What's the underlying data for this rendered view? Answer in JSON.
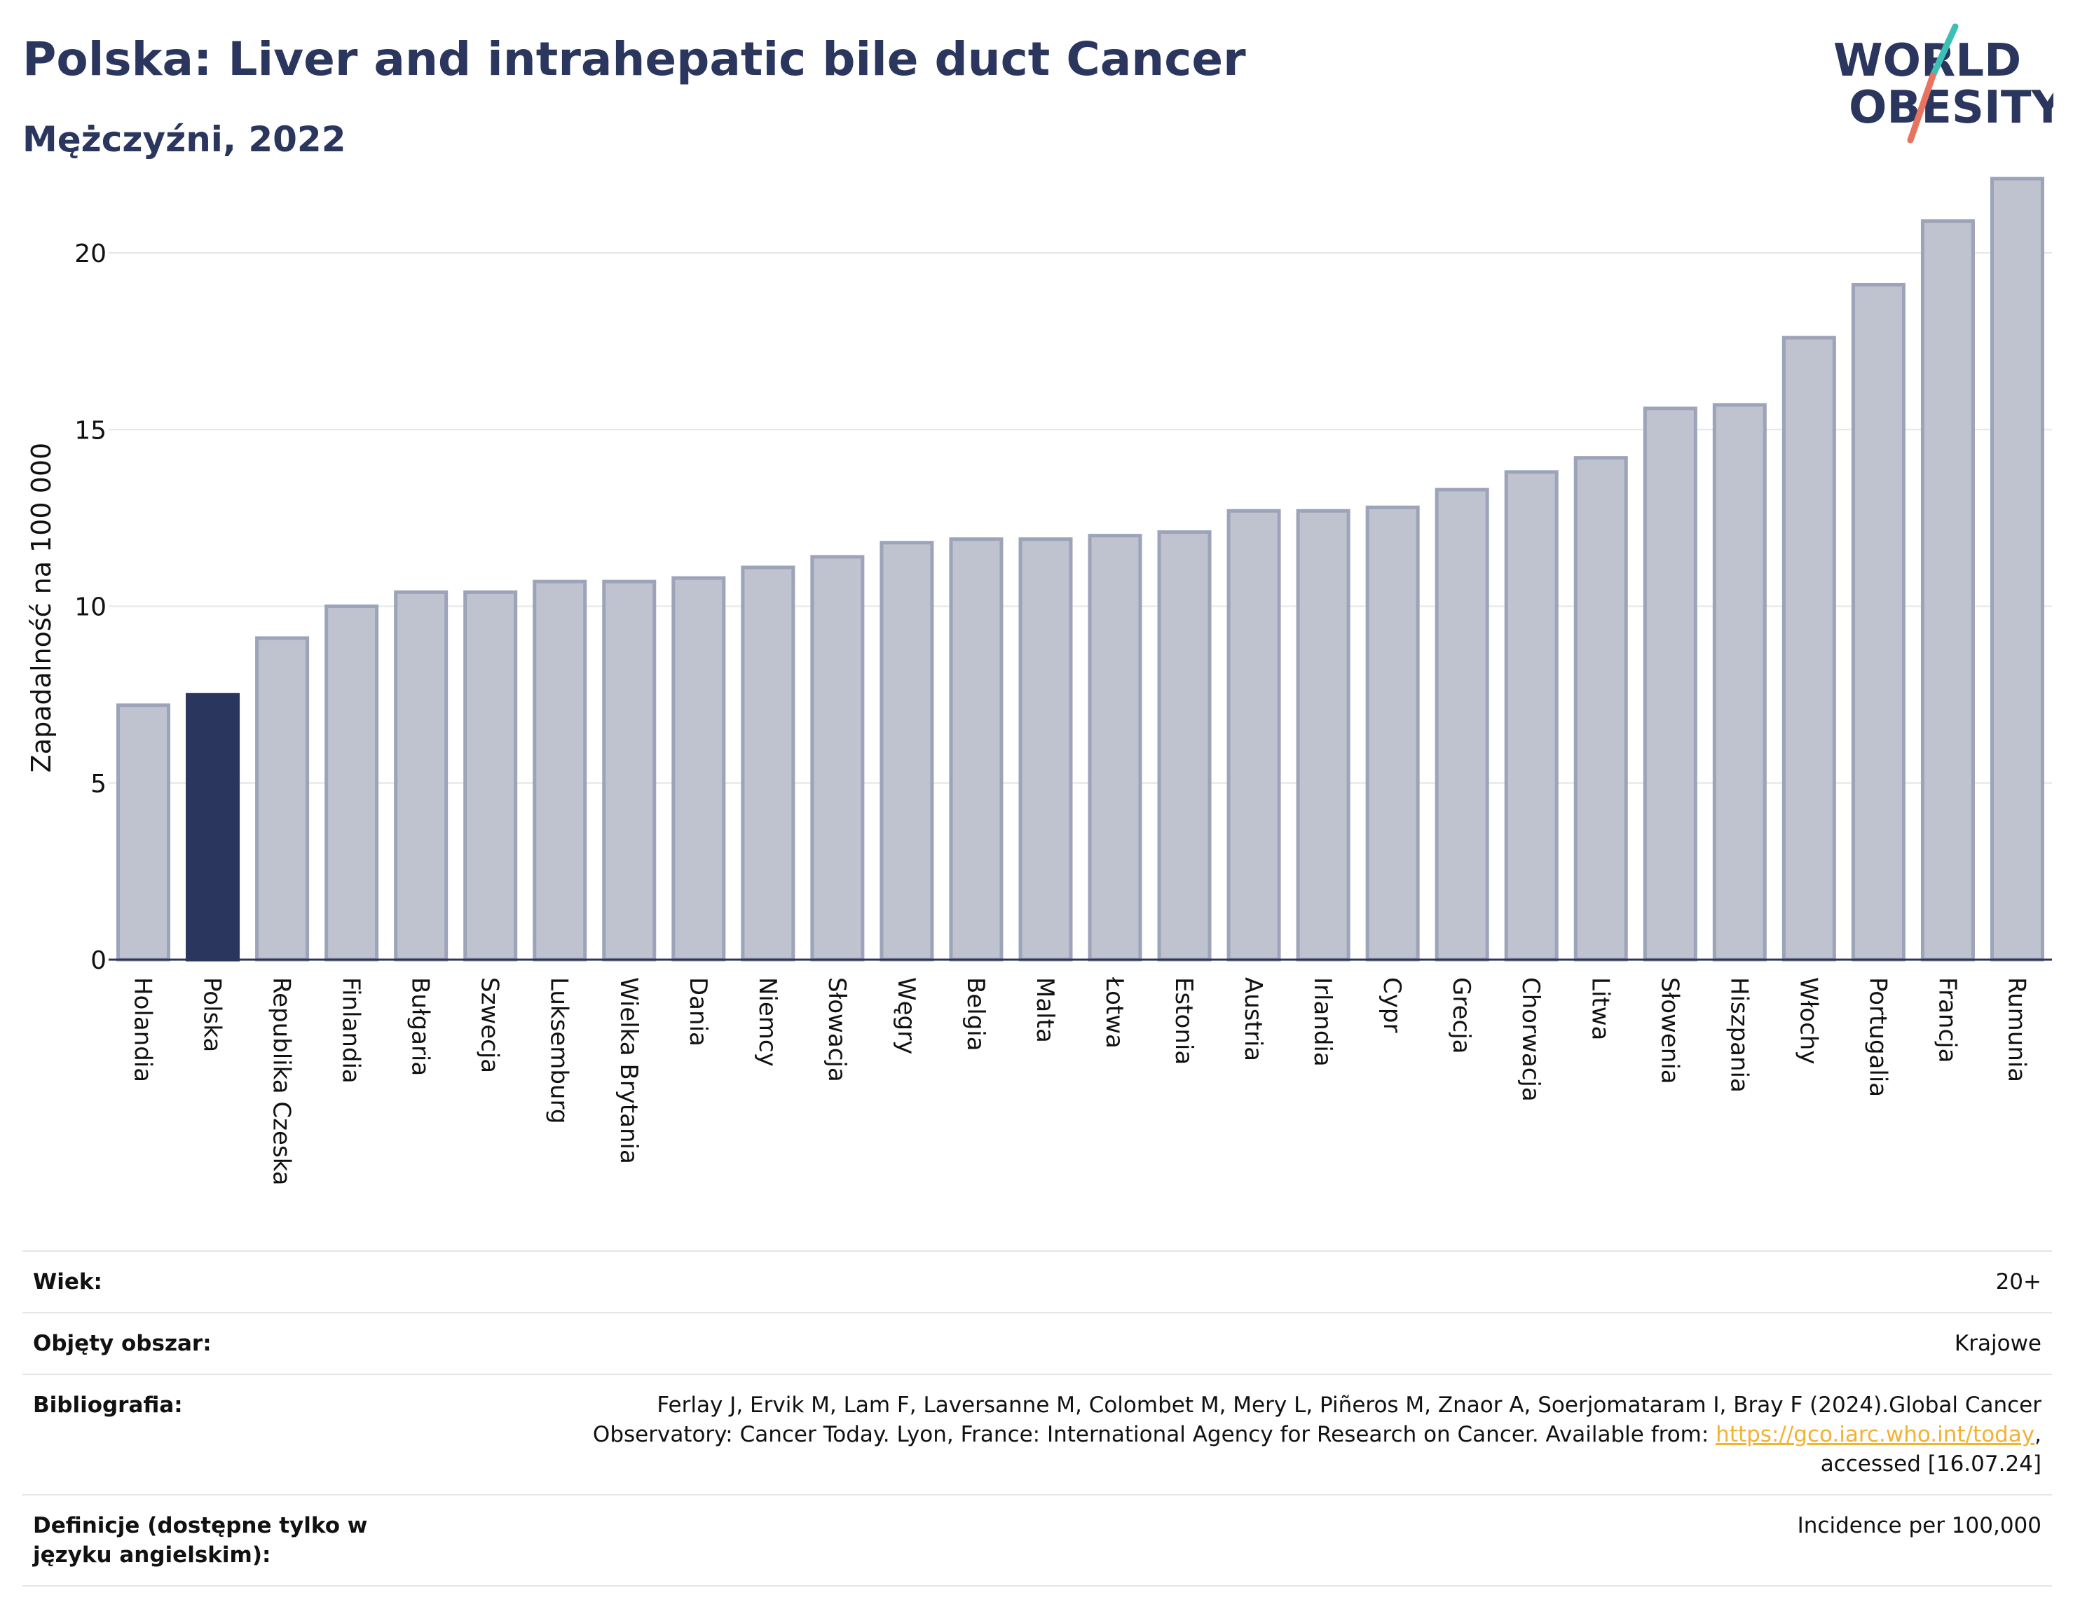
{
  "header": {
    "title": "Polska: Liver and intrahepatic bile duct Cancer",
    "subtitle": "Mężczyźni, 2022"
  },
  "logo": {
    "line1": "WORLD",
    "line2": "OBESITY",
    "colors": {
      "text": "#2b365e",
      "slash_top": "#3cbfb6",
      "slash_bottom": "#e8735f"
    }
  },
  "colors": {
    "bar": "#bfc2cf",
    "bar_border": "#9da3b8",
    "highlight": "#2b365e",
    "grid": "#e6e6e6",
    "axis_text": "#111111"
  },
  "chart_data": {
    "type": "bar",
    "ylabel": "Zapadalność na 100 000",
    "xlabel": "",
    "ylim": [
      0,
      22.3
    ],
    "yticks": [
      0,
      5,
      10,
      15,
      20
    ],
    "grid": true,
    "highlight": "Polska",
    "categories": [
      "Holandia",
      "Polska",
      "Republika Czeska",
      "Finlandia",
      "Bułgaria",
      "Szwecja",
      "Luksemburg",
      "Wielka Brytania",
      "Dania",
      "Niemcy",
      "Słowacja",
      "Węgry",
      "Belgia",
      "Malta",
      "Łotwa",
      "Estonia",
      "Austria",
      "Irlandia",
      "Cypr",
      "Grecja",
      "Chorwacja",
      "Litwa",
      "Słowenia",
      "Hiszpania",
      "Włochy",
      "Portugalia",
      "Francja",
      "Rumunia"
    ],
    "values": [
      7.2,
      7.5,
      9.1,
      10.0,
      10.4,
      10.4,
      10.7,
      10.7,
      10.8,
      11.1,
      11.4,
      11.8,
      11.9,
      11.9,
      12.0,
      12.1,
      12.7,
      12.7,
      12.8,
      13.3,
      13.8,
      14.2,
      15.6,
      15.7,
      17.6,
      19.1,
      20.9,
      22.1
    ]
  },
  "footer": {
    "rows": [
      {
        "key": "Wiek:",
        "value": "20+"
      },
      {
        "key": "Objęty obszar:",
        "value": "Krajowe"
      },
      {
        "key": "Bibliografia:",
        "value_line1": "Ferlay J, Ervik M, Lam F, Laversanne M, Colombet M, Mery L, Piñeros M, Znaor A, Soerjomataram I, Bray F (2024).Global Cancer",
        "value_line2_pre": "Observatory: Cancer Today. Lyon, France: International Agency for Research on Cancer. Available from: ",
        "value_link": "https://gco.iarc.who.int/today",
        "value_line2_post": ",",
        "value_line3": "accessed [16.07.24]"
      },
      {
        "key": "Definicje (dostępne tylko w języku angielskim):",
        "value": "Incidence per 100,000"
      }
    ]
  }
}
